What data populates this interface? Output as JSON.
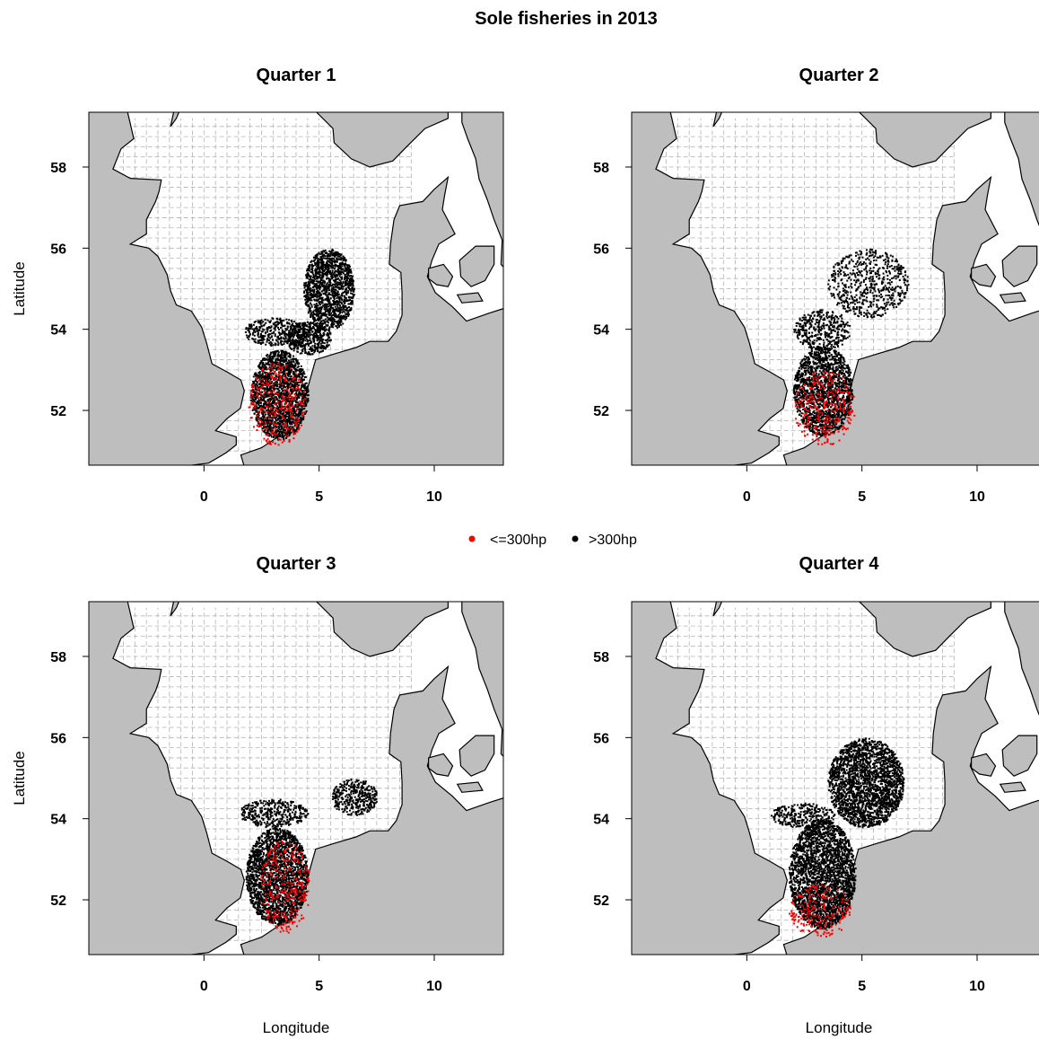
{
  "figure": {
    "title": "Sole fisheries in 2013"
  },
  "colors": {
    "land": "#bebebe",
    "sea": "#ffffff",
    "coast": "#000000",
    "grid": "#b3b3b3",
    "small_vessels": "#ff0000",
    "large_vessels": "#000000"
  },
  "legend": {
    "placement": "center",
    "entries": [
      {
        "label": "<=300hp",
        "color": "#ff0000"
      },
      {
        "label": ">300hp",
        "color": "#000000"
      }
    ]
  },
  "chart_data": [
    {
      "type": "scatter",
      "title": "Quarter 1",
      "xlabel": "",
      "ylabel": "Latitude",
      "xlim": [
        -5,
        13
      ],
      "ylim": [
        50.65,
        59.35
      ],
      "xticks": [
        0,
        5,
        10
      ],
      "yticks": [
        52,
        54,
        56,
        58
      ],
      "grid": true,
      "grid_step": {
        "x": 0.5,
        "y": 0.25
      },
      "series": [
        {
          "name": ">300hp",
          "color": "#000000",
          "zones": [
            {
              "lon": [
                2.0,
                4.5
              ],
              "lat": [
                51.3,
                53.5
              ],
              "density": 0.95
            },
            {
              "lon": [
                4.3,
                6.5
              ],
              "lat": [
                54.0,
                56.0
              ],
              "density": 0.9
            },
            {
              "lon": [
                1.7,
                4.5
              ],
              "lat": [
                53.6,
                54.3
              ],
              "density": 0.55
            },
            {
              "lon": [
                3.5,
                5.5
              ],
              "lat": [
                53.4,
                54.2
              ],
              "density": 0.8
            }
          ]
        },
        {
          "name": "<=300hp",
          "color": "#ff0000",
          "zones": [
            {
              "lon": [
                1.9,
                4.4
              ],
              "lat": [
                51.15,
                53.2
              ],
              "density": 0.85
            }
          ]
        }
      ]
    },
    {
      "type": "scatter",
      "title": "Quarter 2",
      "xlabel": "",
      "ylabel": "",
      "xlim": [
        -5,
        13
      ],
      "ylim": [
        50.65,
        59.35
      ],
      "xticks": [
        0,
        5,
        10
      ],
      "yticks": [
        52,
        54,
        56,
        58
      ],
      "grid": true,
      "grid_step": {
        "x": 0.5,
        "y": 0.25
      },
      "series": [
        {
          "name": ">300hp",
          "color": "#000000",
          "zones": [
            {
              "lon": [
                2.0,
                4.6
              ],
              "lat": [
                51.4,
                53.6
              ],
              "density": 0.85
            },
            {
              "lon": [
                2.0,
                4.5
              ],
              "lat": [
                53.5,
                54.5
              ],
              "density": 0.45
            },
            {
              "lon": [
                3.5,
                7.0
              ],
              "lat": [
                54.3,
                56.0
              ],
              "density": 0.3
            }
          ]
        },
        {
          "name": "<=300hp",
          "color": "#ff0000",
          "zones": [
            {
              "lon": [
                2.0,
                4.7
              ],
              "lat": [
                51.15,
                53.0
              ],
              "density": 0.85
            }
          ]
        }
      ]
    },
    {
      "type": "scatter",
      "title": "Quarter 3",
      "xlabel": "Longitude",
      "ylabel": "Latitude",
      "xlim": [
        -5,
        13
      ],
      "ylim": [
        50.65,
        59.35
      ],
      "xticks": [
        0,
        5,
        10
      ],
      "yticks": [
        52,
        54,
        56,
        58
      ],
      "grid": true,
      "grid_step": {
        "x": 0.5,
        "y": 0.25
      },
      "series": [
        {
          "name": ">300hp",
          "color": "#000000",
          "zones": [
            {
              "lon": [
                1.8,
                4.5
              ],
              "lat": [
                51.4,
                53.8
              ],
              "density": 0.95
            },
            {
              "lon": [
                1.5,
                4.5
              ],
              "lat": [
                53.8,
                54.5
              ],
              "density": 0.5
            },
            {
              "lon": [
                5.5,
                7.5
              ],
              "lat": [
                54.1,
                55.0
              ],
              "density": 0.6
            }
          ]
        },
        {
          "name": "<=300hp",
          "color": "#ff0000",
          "zones": [
            {
              "lon": [
                2.4,
                4.6
              ],
              "lat": [
                51.2,
                53.5
              ],
              "density": 0.85
            }
          ]
        }
      ]
    },
    {
      "type": "scatter",
      "title": "Quarter 4",
      "xlabel": "Longitude",
      "ylabel": "",
      "xlim": [
        -5,
        13
      ],
      "ylim": [
        50.65,
        59.35
      ],
      "xticks": [
        0,
        5,
        10
      ],
      "yticks": [
        52,
        54,
        56,
        58
      ],
      "grid": true,
      "grid_step": {
        "x": 0.5,
        "y": 0.25
      },
      "series": [
        {
          "name": ">300hp",
          "color": "#000000",
          "zones": [
            {
              "lon": [
                1.8,
                4.7
              ],
              "lat": [
                51.3,
                54.0
              ],
              "density": 0.95
            },
            {
              "lon": [
                3.5,
                6.8
              ],
              "lat": [
                53.8,
                56.0
              ],
              "density": 0.9
            },
            {
              "lon": [
                1.0,
                3.8
              ],
              "lat": [
                53.8,
                54.4
              ],
              "density": 0.5
            }
          ]
        },
        {
          "name": "<=300hp",
          "color": "#ff0000",
          "zones": [
            {
              "lon": [
                1.8,
                4.5
              ],
              "lat": [
                51.1,
                52.4
              ],
              "density": 0.85
            }
          ]
        }
      ]
    }
  ]
}
